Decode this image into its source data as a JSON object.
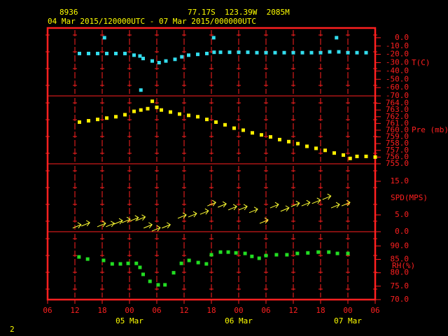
{
  "header": {
    "station": "8936",
    "location": "77.17S  123.39W  2085M",
    "period": "04 Mar 2015/120000UTC - 07 Mar 2015/000000UTC",
    "page_number": "2"
  },
  "chart_data": [
    {
      "type": "scatter",
      "ylabel": "T(C)",
      "color": "#33ddee",
      "grid": true,
      "x": [
        7,
        9,
        11,
        12.5,
        13,
        15,
        17,
        19,
        20.3,
        20.5,
        21,
        23,
        24.5,
        26,
        28,
        29.5,
        31,
        33,
        35,
        36.5,
        36.6,
        38,
        40,
        42,
        44,
        46,
        48,
        50,
        52,
        54,
        56,
        58,
        60,
        62,
        63.5,
        64,
        66,
        68,
        70
      ],
      "values": [
        -19,
        -19,
        -19,
        0,
        -19,
        -19,
        -19,
        -21,
        -22,
        -63,
        -25,
        -28,
        -30,
        -28,
        -26,
        -23,
        -21,
        -20,
        -19,
        0,
        -17.5,
        -17.5,
        -17.5,
        -17.5,
        -17.5,
        -18,
        -18,
        -18,
        -18,
        -18,
        -18,
        -18,
        -18,
        -17,
        0,
        -17,
        -18,
        -18,
        -18
      ],
      "ylim": [
        -70,
        11.7
      ],
      "yticks": [
        {
          "value": 0,
          "label": "0.0"
        },
        {
          "value": -10,
          "label": "-10.0"
        },
        {
          "value": -20,
          "label": "-20.0"
        },
        {
          "value": -30,
          "label": "-30.0"
        },
        {
          "value": -40,
          "label": "-40.0"
        },
        {
          "value": -50,
          "label": "-50.0"
        },
        {
          "value": -60,
          "label": "-60.0"
        },
        {
          "value": -70,
          "label": "-70.0"
        }
      ]
    },
    {
      "type": "scatter",
      "ylabel": "Pre (mb)",
      "color": "#ffee00",
      "grid": true,
      "x": [
        7,
        9,
        11,
        13,
        15,
        17,
        19,
        20.5,
        22,
        23,
        24,
        25,
        27,
        29,
        31,
        33,
        35,
        37,
        39,
        41,
        43,
        45,
        47,
        49,
        51,
        53,
        55,
        57,
        59,
        61,
        63,
        65,
        66.5,
        68,
        70,
        72
      ],
      "values": [
        761.2,
        761.4,
        761.6,
        761.8,
        762,
        762.3,
        762.8,
        763,
        763.2,
        764.3,
        763.4,
        763,
        762.7,
        762.4,
        762.2,
        762,
        761.6,
        761.2,
        760.8,
        760.3,
        760,
        759.6,
        759.3,
        759,
        758.6,
        758.3,
        758,
        757.6,
        757.3,
        757,
        756.6,
        756.3,
        755.8,
        756.1,
        756.1,
        756
      ],
      "ylim": [
        755,
        765.1
      ],
      "yticks": [
        {
          "value": 764,
          "label": "764.0"
        },
        {
          "value": 763,
          "label": "763.0"
        },
        {
          "value": 762,
          "label": "762.0"
        },
        {
          "value": 761,
          "label": "761.0"
        },
        {
          "value": 760,
          "label": "760.0"
        },
        {
          "value": 759,
          "label": "759.0"
        },
        {
          "value": 758,
          "label": "758.0"
        },
        {
          "value": 757,
          "label": "757.0"
        },
        {
          "value": 756,
          "label": "756.0"
        },
        {
          "value": 755,
          "label": "755.0"
        }
      ]
    },
    {
      "type": "arrows",
      "ylabel": "SPD(MPS)",
      "color": "#ffff33",
      "grid": true,
      "x": [
        6.9,
        8.8,
        12.3,
        14.2,
        16,
        17.7,
        19.5,
        21,
        22.5,
        24.3,
        26.5,
        30,
        32.3,
        34.9,
        36.5,
        38.8,
        41.1,
        43.4,
        45.7,
        48,
        50.3,
        52.6,
        54.9,
        57.2,
        59.5,
        61.8,
        63.7,
        66
      ],
      "values": [
        1.9,
        2.5,
        2.3,
        2.3,
        3.1,
        3.5,
        4,
        4.2,
        1.9,
        1,
        1.9,
        4.8,
        5.2,
        6,
        8.5,
        8.1,
        7.3,
        7.3,
        6.5,
        3.3,
        7.9,
        6.9,
        8.3,
        8.5,
        9.2,
        10.4,
        7.9,
        8.5
      ],
      "ylim": [
        0,
        20.2
      ],
      "yticks": [
        {
          "value": 15,
          "label": "15.0"
        },
        {
          "value": 5,
          "label": "5.0"
        },
        {
          "value": 0,
          "label": "0.0"
        }
      ]
    },
    {
      "type": "scatter",
      "ylabel": "RH(%)",
      "color": "#22dd22",
      "grid": true,
      "x": [
        6.9,
        8.8,
        12.3,
        14.2,
        16,
        17.7,
        19.5,
        20.3,
        21,
        22.5,
        24.3,
        25.8,
        27.7,
        29.4,
        31.1,
        33.1,
        34.9,
        36,
        38,
        39.7,
        41.4,
        43.4,
        44.9,
        46.5,
        48,
        50.3,
        52.6,
        54.9,
        57.2,
        59.5,
        61.8,
        63.7,
        66
      ],
      "values": [
        85.9,
        85.1,
        84.6,
        83.3,
        83.3,
        83.5,
        83.5,
        82,
        79.4,
        76.8,
        75.5,
        75.5,
        80,
        83.5,
        84.6,
        83.8,
        83.3,
        86.7,
        87.7,
        87.7,
        87.4,
        87.2,
        86.1,
        85.4,
        86.4,
        86.7,
        86.7,
        87.2,
        87.4,
        87.7,
        87.7,
        87.2,
        87.2
      ],
      "ylim": [
        70,
        95.3
      ],
      "yticks": [
        {
          "value": 90,
          "label": "90.0"
        },
        {
          "value": 85,
          "label": "85.0"
        },
        {
          "value": 80,
          "label": "80.0"
        },
        {
          "value": 75,
          "label": "75.0"
        },
        {
          "value": 70,
          "label": "70.0"
        }
      ],
      "xlim": [
        0,
        72
      ],
      "xticks": [
        {
          "value": 0,
          "label": "06"
        },
        {
          "value": 6,
          "label": "12"
        },
        {
          "value": 12,
          "label": "18"
        },
        {
          "value": 18,
          "label": "00"
        },
        {
          "value": 24,
          "label": "06"
        },
        {
          "value": 30,
          "label": "12"
        },
        {
          "value": 36,
          "label": "18"
        },
        {
          "value": 42,
          "label": "00"
        },
        {
          "value": 48,
          "label": "06"
        },
        {
          "value": 54,
          "label": "12"
        },
        {
          "value": 60,
          "label": "18"
        },
        {
          "value": 66,
          "label": "00"
        },
        {
          "value": 72,
          "label": "06"
        }
      ],
      "date_labels": [
        {
          "value": 18,
          "label": "05 Mar"
        },
        {
          "value": 42,
          "label": "06 Mar"
        },
        {
          "value": 66,
          "label": "07 Mar"
        }
      ]
    }
  ]
}
